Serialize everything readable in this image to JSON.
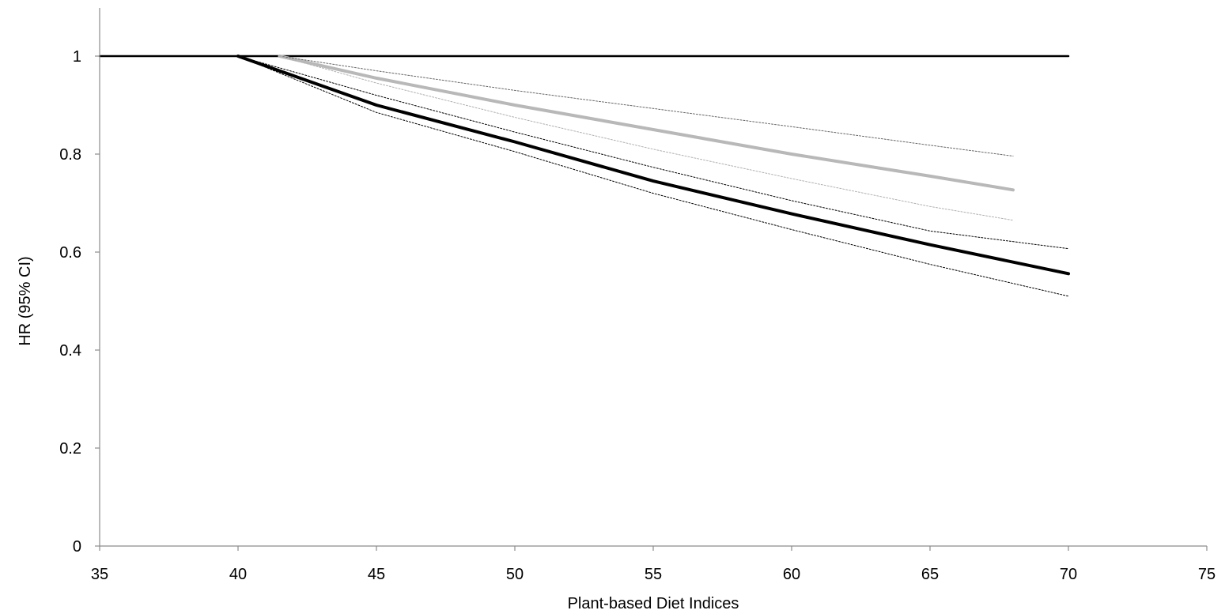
{
  "chart_data": {
    "type": "line",
    "title": "",
    "xlabel": "Plant-based Diet Indices",
    "ylabel": "HR (95% CI)",
    "xlim": [
      35,
      75
    ],
    "ylim": [
      0,
      1.1
    ],
    "x_ticks": [
      35,
      40,
      45,
      50,
      55,
      60,
      65,
      70,
      75
    ],
    "y_ticks": [
      0,
      0.2,
      0.4,
      0.6,
      0.8,
      1
    ],
    "y_tick_labels": [
      "0",
      "0.2",
      "0.4",
      "0.6",
      "0.8",
      "1"
    ],
    "x_tick_labels": [
      "35",
      "40",
      "45",
      "50",
      "55",
      "60",
      "65",
      "70",
      "75"
    ],
    "grid": false,
    "legend": "none",
    "series": [
      {
        "style": "reference",
        "color": "#000000",
        "width": 2.5,
        "dash": "",
        "x": [
          35,
          70
        ],
        "y": [
          1.0,
          1.0
        ]
      },
      {
        "style": "estimate",
        "color": "#b8b8b8",
        "width": 4,
        "dash": "",
        "x": [
          41.5,
          45,
          50,
          55,
          60,
          65,
          68
        ],
        "y": [
          1.0,
          0.955,
          0.9,
          0.85,
          0.8,
          0.755,
          0.727
        ]
      },
      {
        "style": "upper-ci",
        "color": "#666666",
        "width": 1,
        "dash": "2,2",
        "x": [
          41.5,
          45,
          50,
          55,
          60,
          65,
          68
        ],
        "y": [
          1.0,
          0.97,
          0.93,
          0.893,
          0.856,
          0.818,
          0.796
        ]
      },
      {
        "style": "lower-ci",
        "color": "#b0b0b0",
        "width": 1,
        "dash": "2,2",
        "x": [
          41.5,
          45,
          50,
          55,
          60,
          65,
          68
        ],
        "y": [
          1.0,
          0.945,
          0.875,
          0.81,
          0.75,
          0.693,
          0.665
        ]
      },
      {
        "style": "estimate",
        "color": "#000000",
        "width": 4,
        "dash": "",
        "x": [
          40,
          45,
          50,
          55,
          60,
          65,
          70
        ],
        "y": [
          1.0,
          0.9,
          0.825,
          0.745,
          0.678,
          0.615,
          0.556
        ]
      },
      {
        "style": "upper-ci",
        "color": "#000000",
        "width": 1,
        "dash": "2,2",
        "x": [
          40,
          45,
          50,
          55,
          60,
          65,
          70
        ],
        "y": [
          1.0,
          0.92,
          0.845,
          0.773,
          0.705,
          0.643,
          0.607
        ]
      },
      {
        "style": "lower-ci",
        "color": "#000000",
        "width": 1,
        "dash": "2,2",
        "x": [
          40,
          45,
          50,
          55,
          60,
          65,
          70
        ],
        "y": [
          1.0,
          0.885,
          0.805,
          0.72,
          0.646,
          0.575,
          0.51
        ]
      }
    ]
  }
}
